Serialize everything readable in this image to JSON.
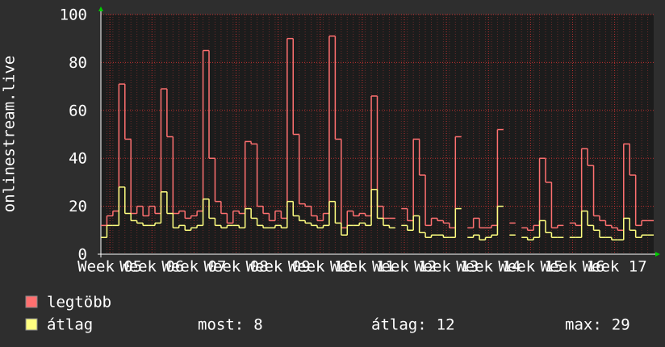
{
  "chart_data": {
    "type": "step",
    "y_label": "onlinestream.live",
    "x": [
      0,
      1,
      2,
      3,
      4,
      5,
      6,
      7,
      8,
      9,
      10,
      11,
      12,
      13,
      14,
      15,
      16,
      17,
      18,
      19,
      20,
      21,
      22,
      23,
      24,
      25,
      26,
      27,
      28,
      29,
      30,
      31,
      32,
      33,
      34,
      35,
      36,
      37,
      38,
      39,
      40,
      41,
      42,
      43,
      44,
      45,
      46,
      47,
      48,
      49,
      50,
      51,
      52,
      53,
      54,
      55,
      56,
      57,
      58,
      59,
      60,
      61,
      62,
      63,
      64,
      65,
      66,
      67,
      68,
      69,
      70,
      71,
      72,
      73,
      74,
      75,
      76,
      77,
      78,
      79,
      80,
      81,
      82,
      83,
      84,
      85,
      86,
      87,
      88,
      89,
      90,
      91
    ],
    "xlim": [
      0,
      92
    ],
    "xticks": [
      {
        "value": 1.5,
        "label": "Week 05"
      },
      {
        "value": 8.5,
        "label": "Week 06"
      },
      {
        "value": 15.5,
        "label": "Week 07"
      },
      {
        "value": 22.5,
        "label": "Week 08"
      },
      {
        "value": 29.5,
        "label": "Week 09"
      },
      {
        "value": 36.5,
        "label": "Week 10"
      },
      {
        "value": 43.5,
        "label": "Week 11"
      },
      {
        "value": 50.5,
        "label": "Week 12"
      },
      {
        "value": 57.5,
        "label": "Week 13"
      },
      {
        "value": 64.5,
        "label": "Week 14"
      },
      {
        "value": 71.5,
        "label": "Week 15"
      },
      {
        "value": 78.5,
        "label": "Week 16"
      },
      {
        "value": 85.5,
        "label": "Week 17"
      }
    ],
    "ylim": [
      0,
      100
    ],
    "yticks": [
      0,
      20,
      40,
      60,
      80,
      100
    ],
    "grid": true,
    "series": [
      {
        "name": "legtöbb",
        "color": "#ff7070",
        "values": [
          12,
          16,
          18,
          71,
          48,
          17,
          20,
          16,
          20,
          17,
          69,
          49,
          17,
          18,
          15,
          16,
          18,
          85,
          40,
          22,
          17,
          13,
          18,
          17,
          47,
          46,
          20,
          17,
          14,
          18,
          15,
          90,
          50,
          21,
          20,
          16,
          14,
          17,
          91,
          48,
          11,
          18,
          16,
          17,
          16,
          66,
          20,
          15,
          15,
          null,
          19,
          14,
          48,
          33,
          12,
          15,
          14,
          13,
          11,
          49,
          null,
          11,
          15,
          11,
          11,
          12,
          52,
          null,
          13,
          null,
          11,
          10,
          12,
          40,
          30,
          11,
          12,
          null,
          13,
          12,
          44,
          37,
          16,
          14,
          12,
          11,
          10,
          46,
          33,
          12,
          14,
          14
        ]
      },
      {
        "name": "átlag",
        "color": "#ffff80",
        "values": [
          7,
          12,
          12,
          28,
          17,
          14,
          13,
          12,
          12,
          13,
          26,
          17,
          11,
          12,
          10,
          11,
          12,
          23,
          15,
          12,
          11,
          12,
          12,
          11,
          19,
          15,
          12,
          11,
          11,
          12,
          11,
          22,
          16,
          14,
          13,
          12,
          11,
          12,
          22,
          13,
          8,
          12,
          12,
          13,
          12,
          27,
          15,
          12,
          11,
          null,
          12,
          10,
          16,
          9,
          7,
          8,
          8,
          7,
          7,
          19,
          null,
          7,
          8,
          6,
          7,
          8,
          20,
          null,
          8,
          null,
          7,
          6,
          7,
          14,
          9,
          7,
          7,
          null,
          7,
          7,
          18,
          12,
          10,
          7,
          7,
          6,
          6,
          15,
          10,
          7,
          8,
          8
        ]
      }
    ],
    "stats": [
      {
        "label": "most:",
        "value": 8
      },
      {
        "label": "átlag:",
        "value": 12
      },
      {
        "label": "max:",
        "value": 29
      }
    ]
  }
}
